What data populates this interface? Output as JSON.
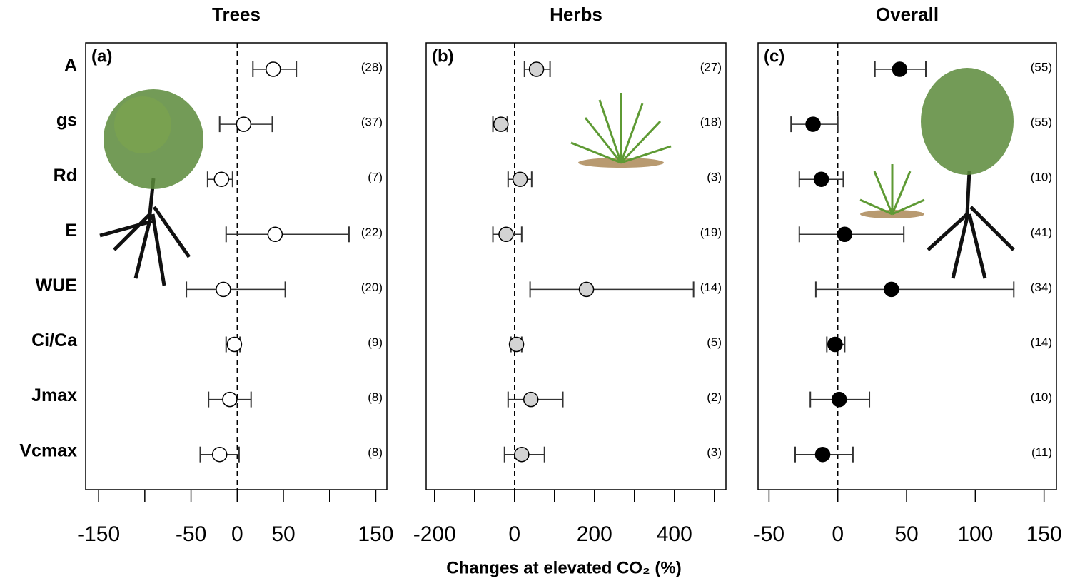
{
  "chart_data": [
    {
      "type": "forest",
      "title": "Trees",
      "panel_label": "(a)",
      "color": "#ffffff",
      "categories": [
        "A",
        "gs",
        "Rd",
        "E",
        "WUE",
        "Ci/Ca",
        "Jmax",
        "Vcmax"
      ],
      "values": [
        39,
        7,
        -17,
        41,
        -15,
        -3,
        -8,
        -19
      ],
      "lower": [
        17,
        -19,
        -32,
        -12,
        -55,
        -12,
        -31,
        -40
      ],
      "upper": [
        64,
        38,
        -5,
        121,
        52,
        3,
        15,
        2
      ],
      "n_labels": [
        "(28)",
        "(37)",
        "(7)",
        "(22)",
        "(20)",
        "(9)",
        "(8)",
        "(8)"
      ],
      "xlim": [
        -164,
        162
      ],
      "xticks": [
        -150,
        -50,
        0,
        50,
        150
      ],
      "xminor_ticks": [
        -100,
        100
      ]
    },
    {
      "type": "forest",
      "title": "Herbs",
      "panel_label": "(b)",
      "color": "#d3d3d3",
      "xlabel": "Changes at elevated CO₂ (%)",
      "values": [
        55,
        -34,
        14,
        -21,
        180,
        5,
        41,
        18
      ],
      "lower": [
        25,
        -54,
        -16,
        -54,
        39,
        -9,
        -16,
        -25
      ],
      "upper": [
        89,
        -18,
        43,
        18,
        448,
        18,
        121,
        75
      ],
      "n_labels": [
        "(27)",
        "(18)",
        "(3)",
        "(19)",
        "(14)",
        "(5)",
        "(2)",
        "(3)"
      ],
      "xlim": [
        -221,
        529
      ],
      "xticks": [
        -200,
        0,
        200,
        400
      ],
      "xminor_ticks": [
        -100,
        100,
        300,
        500
      ]
    },
    {
      "type": "forest",
      "title": "Overall",
      "panel_label": "(c)",
      "color": "#000000",
      "values": [
        45,
        -18,
        -12,
        5,
        39,
        -2,
        1,
        -11
      ],
      "lower": [
        27,
        -34,
        -28,
        -28,
        -16,
        -8,
        -20,
        -31
      ],
      "upper": [
        64,
        0,
        4,
        48,
        128,
        5,
        23,
        11
      ],
      "n_labels": [
        "(55)",
        "(55)",
        "(10)",
        "(41)",
        "(34)",
        "(14)",
        "(10)",
        "(11)"
      ],
      "xlim": [
        -58,
        159
      ],
      "xticks": [
        -50,
        0,
        50,
        100,
        150
      ]
    }
  ]
}
